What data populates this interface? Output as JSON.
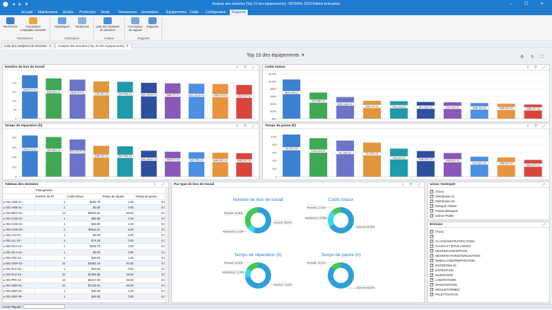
{
  "window": {
    "title": "Analyse des données [Top 10 des équipements] - INTERAL 2019 Édition Entreprise"
  },
  "menu": [
    "Accueil",
    "Maintenance",
    "Achats",
    "Production",
    "Vente",
    "Ressources",
    "Inventaires",
    "Équipements",
    "Outils",
    "Configuration",
    "Rapports"
  ],
  "ribbon": {
    "items": [
      {
        "label": "Recherche"
      },
      {
        "label": "Transaction comptable manuelle"
      },
      {
        "label": "Statistiques"
      },
      {
        "label": "Tendances"
      },
      {
        "label": "Liste des analyses de données"
      },
      {
        "label": "Concepteur de rapport"
      },
      {
        "label": "Rapports"
      }
    ],
    "groups": [
      "Transactions",
      "Statistiques",
      "Analyse",
      "Rapports"
    ]
  },
  "doc_tabs": [
    "Liste des analyses de données",
    "Analyse des données [Top 10 des équipements]"
  ],
  "dashboard": {
    "title": "Top 10 des équipements"
  },
  "panels": {
    "bt": {
      "title": "Nombre de bon de travail"
    },
    "couts": {
      "title": "Coûts totaux"
    },
    "rep": {
      "title": "Temps de réparation (h)"
    },
    "panne": {
      "title": "Temps de panne (h)"
    },
    "table": {
      "title": "Tableau des données"
    },
    "donuts": {
      "title": "Par type de bon de travail"
    }
  },
  "chart_data": [
    {
      "type": "bar",
      "title": "Nombre de bon de travail",
      "categories": [
        "TRA-CTC-01",
        "REM-DIS-01",
        "REM-TET-01",
        "CON-TEC-03",
        "BAT-PRE-01",
        "SED-SOUF-01",
        "EMB-TET-01",
        "SED-SOUF-02",
        "EMB-TET-03",
        "CAP-PCT-02"
      ],
      "values": [
        242,
        225,
        218,
        208,
        206,
        200,
        197,
        195,
        193,
        188
      ],
      "yticks": [
        0,
        50,
        100,
        150,
        200
      ],
      "ylim": [
        0,
        250
      ]
    },
    {
      "type": "bar",
      "title": "Coûts totaux",
      "categories": [
        "REM-DIS-01",
        "CDV-SRT-01",
        "MOU-AUD-01",
        "EMB-TET-01",
        "TRA-CDV-03",
        "SEC-SEC-01",
        "EST-CST-01",
        "EMB-TET-03",
        "EMB-SEC-01",
        "EMB-TET-01"
      ],
      "values": [
        105000,
        70000,
        58000,
        48000,
        47000,
        45000,
        44000,
        42000,
        40000,
        38000
      ],
      "ytick_labels": [
        "$0K",
        "$20K",
        "$40K",
        "$60K",
        "$80K",
        "$100K",
        "$120K"
      ],
      "yticks": [
        0,
        20000,
        40000,
        60000,
        80000,
        100000,
        120000
      ],
      "ylim": [
        0,
        120000
      ]
    },
    {
      "type": "bar",
      "title": "Temps de réparation (h)",
      "categories": [
        "TRA-CTC-01",
        "VAP-DST-01",
        "SED-SOUF-02",
        "EMB-TET-03",
        "BAT-PRE-02",
        "SED-SOUF-01",
        "EMB-SLT-02",
        "BAT-PRE-01",
        "EMB-SEC-01",
        "EMB-SEC-02"
      ],
      "values": [
        840,
        810,
        760,
        630,
        620,
        530,
        510,
        500,
        490,
        480
      ],
      "yticks": [
        0,
        200,
        400,
        600,
        800
      ],
      "ylim": [
        0,
        900
      ]
    },
    {
      "type": "bar",
      "title": "Temps de panne (h)",
      "categories": [
        "FIL-PCC-03",
        "CON-SOD-01",
        "FIL-SEC-01",
        "FIL-DOD-01",
        "TRA-SLT-01",
        "EMB-DEC-04",
        "EMB-SEC-02",
        "ACS-SEC-01",
        "EMB-SLT-02",
        "SAN-CPT-01"
      ],
      "values": [
        1050,
        960,
        900,
        850,
        700,
        640,
        590,
        500,
        480,
        420
      ],
      "yticks": [
        0,
        200,
        400,
        600,
        800,
        1000
      ],
      "ylim": [
        0,
        1100
      ]
    }
  ],
  "table": {
    "total_label": "Total général",
    "headers": [
      "Nombre de BT",
      "Coûts totaux",
      "Temps de répara",
      "Temps de panne"
    ],
    "rows": [
      {
        "id": "001-ADE-01 -",
        "bt": "1",
        "cout": "$155.70",
        "rep": "1.00",
        "panne": "0.00"
      },
      {
        "id": "001-ARE-01 -",
        "bt": "1",
        "cout": "$0.00",
        "rep": "0.00",
        "panne": "0.00"
      },
      {
        "id": "001-BRO-02 -",
        "bt": "13",
        "cout": "$8915.62",
        "rep": "68.00",
        "panne": "0.00"
      },
      {
        "id": "001-COD-01 -",
        "bt": "1",
        "cout": "$92.55",
        "rep": "0.00",
        "panne": "0.00"
      },
      {
        "id": "001-COD-02 -",
        "bt": "1",
        "cout": "$40.00",
        "rep": "1.00",
        "panne": "0.00"
      },
      {
        "id": "001-COD-03 -",
        "bt": "2",
        "cout": "$1811.51",
        "rep": "5.00",
        "panne": "0.00"
      },
      {
        "id": "001-LAV-01 -",
        "bt": "1",
        "cout": "$0.00",
        "rep": "0.00",
        "panne": "0.00"
      },
      {
        "id": "001-LLL-02 -",
        "bt": "4",
        "cout": "$74.25",
        "rep": "0.00",
        "panne": "0.00"
      },
      {
        "id": "001-OLA-12 -",
        "bt": "1",
        "cout": "$115.70",
        "rep": "2.00",
        "panne": "0.00"
      },
      {
        "id": "001-OLA-13 -",
        "bt": "1",
        "cout": "$0.00",
        "rep": "0.00",
        "panne": "0.00"
      },
      {
        "id": "001-OOI-01 -",
        "bt": "1",
        "cout": "$40.00",
        "rep": "1.00",
        "panne": "0.00"
      },
      {
        "id": "001-OOP-02 -",
        "bt": "24",
        "cout": "$3062.10",
        "rep": "94.00",
        "panne": "0.00"
      },
      {
        "id": "001-PLC-02 -",
        "bt": "1",
        "cout": "$40.00",
        "rep": "0.00",
        "panne": "0.00"
      },
      {
        "id": "001-PLC-03 -",
        "bt": "18",
        "cout": "$1384.58",
        "rep": "28.83",
        "panne": "0.00"
      },
      {
        "id": "001-PPA-01 -",
        "bt": "13",
        "cout": "$3217.03",
        "rep": "55.00",
        "panne": "0.00"
      },
      {
        "id": "001-SER-03 -",
        "bt": "16",
        "cout": "$7132.51",
        "rep": "55.00",
        "panne": "0.00"
      },
      {
        "id": "001-SER-04 -",
        "bt": "1",
        "cout": "$40.00",
        "rep": "1.00",
        "panne": "0.00"
      },
      {
        "id": "001-SER-06 -",
        "bt": "1",
        "cout": "$40.00",
        "rep": "0.00",
        "panne": "0.00"
      }
    ]
  },
  "donuts": [
    {
      "title": "Nombre de bon de travail",
      "slices": [
        {
          "label": "Correctif: 55.84%",
          "value": 55.84,
          "color": "#2e9fd8"
        },
        {
          "label": "Amélioration: 9.22%",
          "value": 9.22,
          "color": "#3dd6f0"
        },
        {
          "label": "Préventif: 34.94%",
          "value": 34.94,
          "color": "#43c853"
        }
      ]
    },
    {
      "title": "Coûts totaux",
      "slices": [
        {
          "label": "Correctif: 66.55%",
          "value": 66.55,
          "color": "#2e9fd8"
        },
        {
          "label": "Amélioration: 20.85%",
          "value": 20.85,
          "color": "#3dd6f0"
        },
        {
          "label": "Préventif: 12.61%",
          "value": 12.61,
          "color": "#43c853"
        }
      ]
    },
    {
      "title": "Temps de réparation (h)",
      "slices": [
        {
          "label": "Correctif: 72.65%",
          "value": 72.65,
          "color": "#2e9fd8"
        },
        {
          "label": "Amélioration: 11.26%",
          "value": 11.26,
          "color": "#3dd6f0"
        },
        {
          "label": "Préventif: 16.09%",
          "value": 16.09,
          "color": "#43c853"
        }
      ]
    },
    {
      "title": "Temps de panne (h)",
      "slices": [
        {
          "label": "Correctif: 86.89%",
          "value": 86.89,
          "color": "#2e9fd8"
        },
        {
          "label": "Préventif: 13.11%",
          "value": 13.11,
          "color": "#43c853"
        }
      ]
    }
  ],
  "filters": {
    "usine": {
      "title": "Usine / Entrepôt",
      "items": [
        "(Tous)",
        "Distribution-12",
        "Distribution-48",
        "Entrepôt Joliette",
        "Fission-Beauport",
        "Usines-Poiliet"
      ]
    },
    "division": {
      "title": "Division",
      "items": [
        "(Tous)",
        "",
        "CLASSIONSTRATIFICATION",
        "CUVES ET BOUILLOIRES",
        "DESSIN/CONCEPTION",
        "DESINFECTION/STERILISATION",
        "EMBALLAGE/PREPARATION",
        "ENTRETIEN-01",
        "EXPEDITION",
        "INVENTAIRE",
        "LABORATOIRE",
        "MANUTENTION",
        "MOULE/FORMES",
        "PALETTISATION"
      ]
    }
  },
  "status": {
    "label": "Accès Rapide:"
  }
}
